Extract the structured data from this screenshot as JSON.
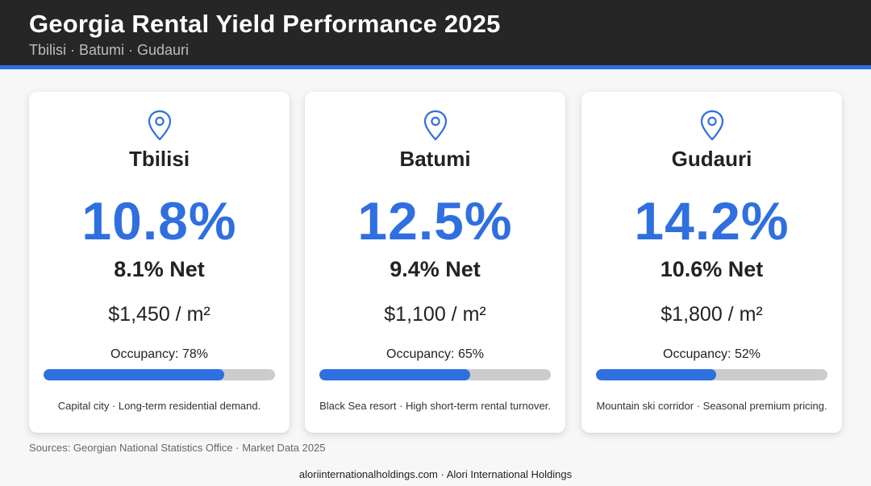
{
  "header": {
    "title": "Georgia Rental Yield Performance 2025",
    "subtitle": "Tbilisi · Batumi · Gudauri"
  },
  "accent_color": "#2f6fe0",
  "cards": [
    {
      "icon": "map-pin-icon",
      "city": "Tbilisi",
      "gross": "10.8%",
      "net": "8.1% Net",
      "price": "$1,450 / m²",
      "occupancy_label": "Occupancy: 78%",
      "occupancy": 0.78,
      "note": "Capital city · Long-term residential demand."
    },
    {
      "icon": "map-pin-icon",
      "city": "Batumi",
      "gross": "12.5%",
      "net": "9.4% Net",
      "price": "$1,100 / m²",
      "occupancy_label": "Occupancy: 65%",
      "occupancy": 0.65,
      "note": "Black Sea resort · High short-term rental turnover."
    },
    {
      "icon": "map-pin-icon",
      "city": "Gudauri",
      "gross": "14.2%",
      "net": "10.6% Net",
      "price": "$1,800 / m²",
      "occupancy_label": "Occupancy: 52%",
      "occupancy": 0.52,
      "note": "Mountain ski corridor · Seasonal premium pricing."
    }
  ],
  "sources": "Sources: Georgian National Statistics Office · Market Data 2025",
  "footer": "aloriinternationalholdings.com · Alori International Holdings"
}
